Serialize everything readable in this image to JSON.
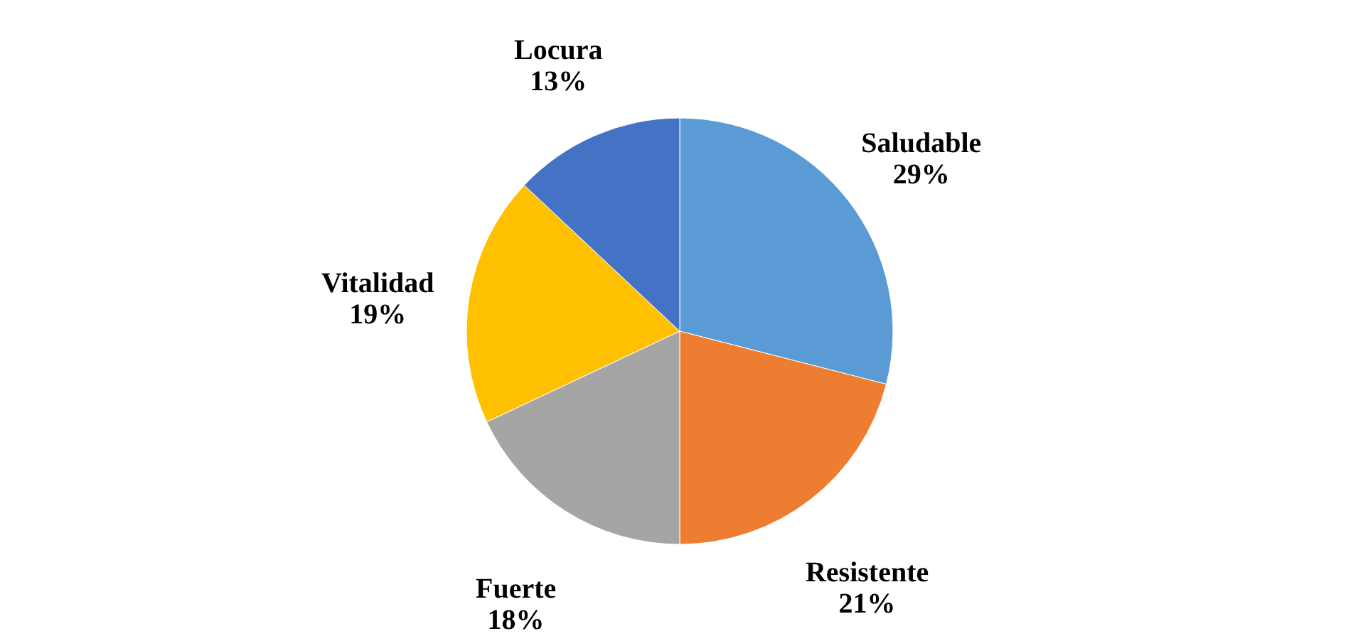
{
  "chart_data": {
    "type": "pie",
    "categories": [
      "Saludable",
      "Resistente",
      "Fuerte",
      "Vitalidad",
      "Locura"
    ],
    "values": [
      29,
      21,
      18,
      19,
      13
    ],
    "value_labels": [
      "29%",
      "21%",
      "18%",
      "19%",
      "13%"
    ],
    "colors": [
      "#5b9bd5",
      "#ed7d31",
      "#a5a5a5",
      "#ffc000",
      "#4472c4"
    ]
  }
}
